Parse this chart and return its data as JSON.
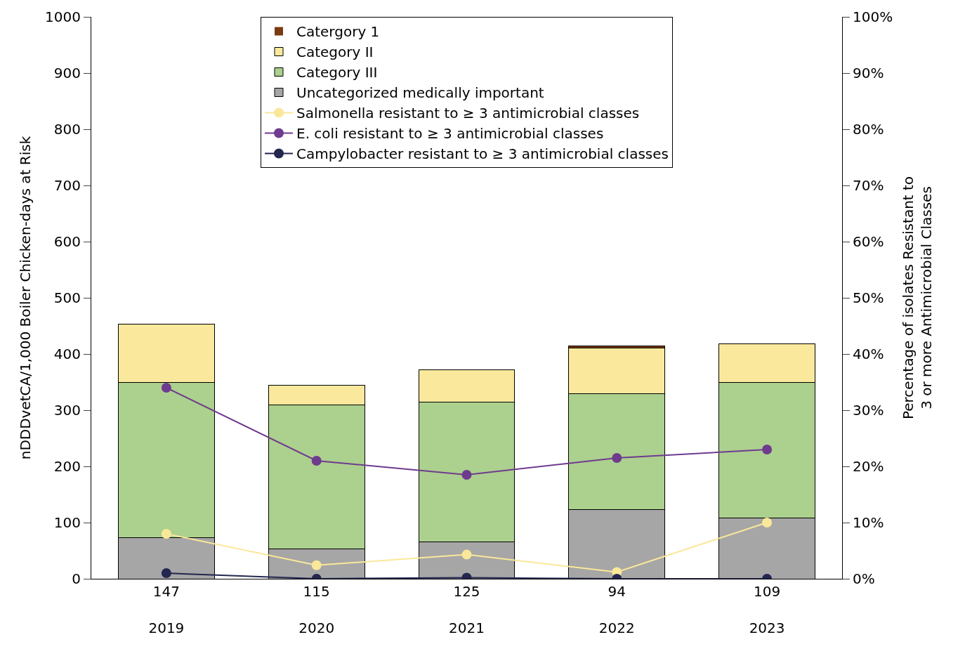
{
  "chart_data": {
    "type": "bar",
    "stacked": true,
    "categories": [
      "147\n\n2019",
      "115\n\n2020",
      "125\n\n2021",
      "94\n\n2022",
      "109\n\n2023"
    ],
    "ylabel": "nDDDvetCA/1,000 Boiler Chicken-days at Risk",
    "y2label": "Percentage of isolates Resistant to\n3 or more Antimicrobial Classes",
    "ylim": [
      0,
      1000
    ],
    "yticks": [
      0,
      100,
      200,
      300,
      400,
      500,
      600,
      700,
      800,
      900,
      1000
    ],
    "y2lim": [
      0,
      100
    ],
    "y2ticks": [
      {
        "value": 0,
        "label": "0%"
      },
      {
        "value": 10,
        "label": "10%"
      },
      {
        "value": 20,
        "label": "20%"
      },
      {
        "value": 30,
        "label": "30%"
      },
      {
        "value": 40,
        "label": "40%"
      },
      {
        "value": 50,
        "label": "50%"
      },
      {
        "value": 60,
        "label": "60%"
      },
      {
        "value": 70,
        "label": "70%"
      },
      {
        "value": 80,
        "label": "80%"
      },
      {
        "value": 90,
        "label": "90%"
      },
      {
        "value": 100,
        "label": "100%"
      }
    ],
    "legend": "top",
    "marker": "circle",
    "series": [
      {
        "name": "Uncategorized medically important",
        "color": "#a6a6a6",
        "values": [
          73,
          53,
          66,
          123,
          108
        ]
      },
      {
        "name": "Category III",
        "color": "#acd08e",
        "values": [
          276,
          256,
          249,
          207,
          241
        ]
      },
      {
        "name": "Category II",
        "color": "#fae99c",
        "values": [
          104,
          35,
          57,
          81,
          69
        ]
      },
      {
        "name": "Catergory 1",
        "color": "#7b3a10",
        "values": [
          0,
          0,
          0,
          3,
          0
        ]
      },
      {
        "name": "Salmonella resistant to ≥ 3 antimicrobial classes",
        "type": "line",
        "axis": "y2",
        "color": "#fae89a",
        "values": [
          8,
          2.4,
          4.3,
          1.2,
          10
        ]
      },
      {
        "name": "E. coli resistant to ≥ 3 antimicrobial classes",
        "type": "line",
        "axis": "y2",
        "color": "#6f3b8e",
        "values": [
          34,
          21,
          18.5,
          21.5,
          23
        ]
      },
      {
        "name": "Campylobacter resistant to ≥ 3 antimicrobial classes",
        "type": "line",
        "axis": "y2",
        "color": "#23264f",
        "values": [
          1,
          0,
          0.2,
          0,
          0
        ]
      }
    ]
  }
}
